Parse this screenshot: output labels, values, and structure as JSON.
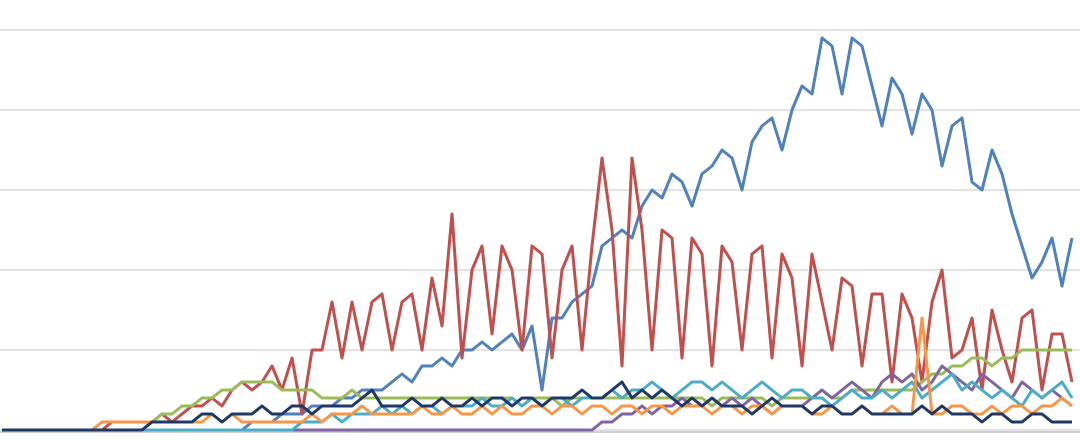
{
  "chart_data": {
    "type": "line",
    "grid": true,
    "ylim": [
      0,
      5
    ],
    "yticks": [
      0,
      1,
      2,
      3,
      4,
      5
    ],
    "categories": [
      null,
      null,
      null,
      null,
      null,
      null,
      null,
      null,
      null,
      null,
      null,
      null,
      null,
      null,
      null,
      null,
      null,
      null,
      null,
      null,
      null,
      null,
      null,
      null,
      null,
      null,
      null,
      null,
      null,
      null,
      null,
      null,
      null,
      null,
      null,
      null,
      null,
      null,
      null,
      null,
      null,
      null,
      null,
      null,
      null,
      null,
      null,
      null,
      null,
      null,
      null,
      null,
      null,
      null,
      null,
      null,
      null,
      null,
      null,
      null,
      null,
      null,
      null,
      null,
      null,
      null,
      null,
      null,
      null,
      null,
      null,
      null,
      null,
      null,
      null,
      null,
      null,
      null,
      null,
      null,
      null,
      null,
      null,
      null,
      null,
      null,
      null,
      null,
      null,
      null,
      null,
      null,
      null,
      null,
      null,
      null,
      null,
      null,
      null,
      null,
      null,
      null,
      null,
      null,
      null,
      null,
      null,
      null
    ],
    "series": [
      {
        "color": "#4f81bd",
        "values": [
          0,
          0,
          0,
          0,
          0,
          0,
          0,
          0,
          0,
          0,
          0,
          0,
          0,
          0,
          0,
          0,
          0,
          0,
          0,
          0,
          0,
          0,
          0,
          0,
          0,
          0.1,
          0.1,
          0.1,
          0.2,
          0.2,
          0.2,
          0.3,
          0.3,
          0.3,
          0.4,
          0.4,
          0.5,
          0.5,
          0.5,
          0.6,
          0.7,
          0.6,
          0.8,
          0.8,
          0.9,
          0.8,
          1.0,
          1.0,
          1.1,
          1.0,
          1.1,
          1.2,
          1.0,
          1.3,
          0.5,
          1.4,
          1.4,
          1.6,
          1.7,
          1.8,
          2.3,
          2.4,
          2.5,
          2.4,
          2.8,
          3.0,
          2.9,
          3.2,
          3.1,
          2.8,
          3.2,
          3.3,
          3.5,
          3.4,
          3.0,
          3.6,
          3.8,
          3.9,
          3.5,
          4.0,
          4.3,
          4.2,
          4.9,
          4.8,
          4.2,
          4.9,
          4.8,
          4.3,
          3.8,
          4.4,
          4.2,
          3.7,
          4.2,
          4.0,
          3.3,
          3.8,
          3.9,
          3.1,
          3.0,
          3.5,
          3.2,
          2.7,
          2.3,
          1.9,
          2.1,
          2.4,
          1.8,
          2.4
        ]
      },
      {
        "color": "#c0504d",
        "values": [
          0,
          0,
          0,
          0,
          0,
          0,
          0,
          0,
          0,
          0,
          0,
          0.1,
          0.1,
          0.1,
          0.1,
          0.1,
          0.2,
          0.1,
          0.2,
          0.3,
          0.3,
          0.4,
          0.3,
          0.5,
          0.6,
          0.5,
          0.6,
          0.8,
          0.5,
          0.9,
          0.2,
          1.0,
          1.0,
          1.6,
          0.9,
          1.6,
          1.0,
          1.6,
          1.7,
          1.0,
          1.6,
          1.7,
          1.0,
          1.9,
          1.3,
          2.7,
          0.9,
          2.0,
          2.3,
          1.2,
          2.3,
          2.0,
          1.0,
          2.3,
          2.2,
          0.9,
          2.0,
          2.3,
          1.0,
          2.3,
          3.4,
          2.5,
          0.8,
          3.4,
          2.5,
          1.0,
          2.5,
          2.4,
          0.9,
          2.4,
          2.2,
          0.8,
          2.3,
          2.1,
          1.0,
          2.2,
          2.3,
          0.9,
          2.2,
          1.9,
          0.8,
          2.2,
          1.6,
          1.0,
          1.9,
          1.8,
          0.8,
          1.7,
          1.7,
          0.6,
          1.7,
          1.4,
          0.6,
          1.6,
          2.0,
          0.9,
          1.0,
          1.4,
          0.5,
          1.5,
          1.0,
          0.6,
          1.4,
          1.5,
          0.5,
          1.2,
          1.2,
          0.6
        ]
      },
      {
        "color": "#9bbb59",
        "values": [
          0,
          0,
          0,
          0,
          0,
          0,
          0,
          0,
          0,
          0,
          0,
          0,
          0,
          0,
          0,
          0.1,
          0.2,
          0.2,
          0.3,
          0.3,
          0.4,
          0.4,
          0.5,
          0.5,
          0.6,
          0.6,
          0.6,
          0.6,
          0.5,
          0.5,
          0.5,
          0.5,
          0.4,
          0.4,
          0.4,
          0.5,
          0.4,
          0.4,
          0.4,
          0.4,
          0.4,
          0.4,
          0.4,
          0.4,
          0.4,
          0.4,
          0.4,
          0.4,
          0.4,
          0.4,
          0.4,
          0.4,
          0.3,
          0.4,
          0.4,
          0.4,
          0.3,
          0.4,
          0.4,
          0.4,
          0.4,
          0.4,
          0.4,
          0.4,
          0.4,
          0.4,
          0.4,
          0.4,
          0.4,
          0.4,
          0.4,
          0.3,
          0.4,
          0.4,
          0.4,
          0.4,
          0.4,
          0.3,
          0.4,
          0.4,
          0.4,
          0.4,
          0.5,
          0.4,
          0.4,
          0.5,
          0.5,
          0.5,
          0.5,
          0.5,
          0.5,
          0.5,
          0.6,
          0.7,
          0.7,
          0.8,
          0.8,
          0.9,
          0.9,
          0.8,
          0.9,
          0.9,
          1.0,
          1.0,
          1.0,
          1.0,
          1.0,
          1.0
        ]
      },
      {
        "color": "#8064a2",
        "values": [
          0,
          0,
          0,
          0,
          0,
          0,
          0,
          0,
          0,
          0,
          0,
          0,
          0,
          0,
          0,
          0,
          0,
          0,
          0,
          0,
          0,
          0,
          0,
          0,
          0,
          0,
          0,
          0,
          0,
          0,
          0,
          0,
          0,
          0,
          0,
          0,
          0,
          0,
          0,
          0,
          0,
          0,
          0,
          0,
          0,
          0,
          0,
          0,
          0,
          0,
          0,
          0,
          0,
          0,
          0,
          0,
          0,
          0,
          0,
          0,
          0.1,
          0.1,
          0.2,
          0.2,
          0.3,
          0.2,
          0.3,
          0.3,
          0.4,
          0.3,
          0.3,
          0.4,
          0.3,
          0.4,
          0.3,
          0.4,
          0.3,
          0.2,
          0.3,
          0.3,
          0.3,
          0.4,
          0.5,
          0.4,
          0.5,
          0.6,
          0.5,
          0.4,
          0.6,
          0.7,
          0.6,
          0.7,
          0.5,
          0.6,
          0.8,
          0.7,
          0.6,
          0.5,
          0.7,
          0.6,
          0.5,
          0.4,
          0.6,
          0.5,
          0.4,
          0.5,
          0.4,
          0.3
        ]
      },
      {
        "color": "#4bacc6",
        "values": [
          0,
          0,
          0,
          0,
          0,
          0,
          0,
          0,
          0,
          0,
          0,
          0,
          0,
          0,
          0,
          0,
          0,
          0,
          0,
          0,
          0,
          0,
          0,
          0,
          0,
          0,
          0,
          0,
          0,
          0,
          0.1,
          0.1,
          0.1,
          0.2,
          0.1,
          0.2,
          0.2,
          0.2,
          0.3,
          0.2,
          0.3,
          0.2,
          0.3,
          0.3,
          0.2,
          0.3,
          0.3,
          0.3,
          0.4,
          0.3,
          0.3,
          0.4,
          0.3,
          0.4,
          0.3,
          0.4,
          0.4,
          0.3,
          0.4,
          0.4,
          0.4,
          0.5,
          0.4,
          0.5,
          0.5,
          0.6,
          0.5,
          0.4,
          0.5,
          0.6,
          0.6,
          0.5,
          0.6,
          0.5,
          0.4,
          0.5,
          0.6,
          0.5,
          0.4,
          0.5,
          0.5,
          0.4,
          0.4,
          0.3,
          0.4,
          0.5,
          0.4,
          0.4,
          0.5,
          0.4,
          0.5,
          0.6,
          0.4,
          0.5,
          0.6,
          0.7,
          0.5,
          0.6,
          0.5,
          0.4,
          0.5,
          0.4,
          0.3,
          0.5,
          0.4,
          0.5,
          0.6,
          0.4
        ]
      },
      {
        "color": "#f79646",
        "values": [
          0,
          0,
          0,
          0,
          0,
          0,
          0,
          0,
          0,
          0,
          0.1,
          0.1,
          0.1,
          0.1,
          0.1,
          0.1,
          0.1,
          0.1,
          0.1,
          0.1,
          0.1,
          0.2,
          0.1,
          0.2,
          0.1,
          0.1,
          0.1,
          0.1,
          0.1,
          0.1,
          0.1,
          0.2,
          0.1,
          0.2,
          0.2,
          0.2,
          0.3,
          0.2,
          0.2,
          0.2,
          0.2,
          0.2,
          0.3,
          0.2,
          0.2,
          0.3,
          0.2,
          0.2,
          0.3,
          0.2,
          0.3,
          0.2,
          0.2,
          0.3,
          0.3,
          0.2,
          0.3,
          0.3,
          0.2,
          0.3,
          0.3,
          0.2,
          0.3,
          0.3,
          0.2,
          0.3,
          0.3,
          0.2,
          0.3,
          0.3,
          0.3,
          0.2,
          0.3,
          0.3,
          0.2,
          0.3,
          0.3,
          0.2,
          0.3,
          0.3,
          0.3,
          0.2,
          0.2,
          0.3,
          0.2,
          0.2,
          0.3,
          0.2,
          0.2,
          0.3,
          0.2,
          0.2,
          1.4,
          0.2,
          0.2,
          0.3,
          0.3,
          0.2,
          0.2,
          0.3,
          0.2,
          0.3,
          0.3,
          0.2,
          0.3,
          0.3,
          0.4,
          0.3
        ]
      },
      {
        "color": "#1f3864",
        "values": [
          0,
          0,
          0,
          0,
          0,
          0,
          0,
          0,
          0,
          0,
          0,
          0,
          0,
          0,
          0,
          0.1,
          0.1,
          0.1,
          0.1,
          0.1,
          0.2,
          0.2,
          0.1,
          0.2,
          0.2,
          0.2,
          0.3,
          0.2,
          0.2,
          0.3,
          0.3,
          0.2,
          0.3,
          0.3,
          0.3,
          0.3,
          0.4,
          0.5,
          0.3,
          0.3,
          0.3,
          0.4,
          0.3,
          0.3,
          0.4,
          0.3,
          0.3,
          0.4,
          0.3,
          0.4,
          0.4,
          0.3,
          0.4,
          0.4,
          0.3,
          0.4,
          0.4,
          0.4,
          0.5,
          0.4,
          0.4,
          0.5,
          0.6,
          0.4,
          0.5,
          0.4,
          0.5,
          0.4,
          0.3,
          0.4,
          0.3,
          0.4,
          0.3,
          0.3,
          0.3,
          0.2,
          0.3,
          0.4,
          0.3,
          0.3,
          0.3,
          0.2,
          0.3,
          0.3,
          0.2,
          0.2,
          0.3,
          0.2,
          0.2,
          0.2,
          0.2,
          0.2,
          0.3,
          0.2,
          0.3,
          0.2,
          0.2,
          0.2,
          0.1,
          0.2,
          0.2,
          0.1,
          0.1,
          0.2,
          0.2,
          0.1,
          0.1,
          0.1
        ]
      }
    ]
  }
}
